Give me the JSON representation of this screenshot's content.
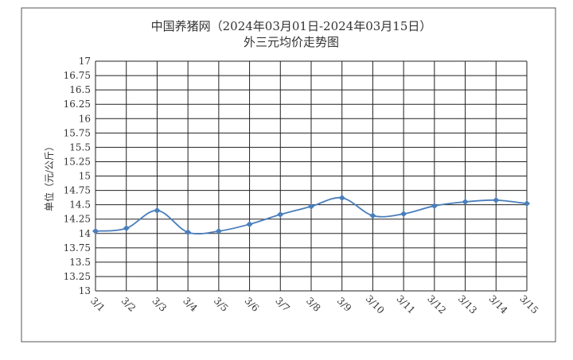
{
  "chart_data": {
    "type": "line",
    "title": "中国养猪网（2024年03月01日-2024年03月15日）",
    "subtitle": "外三元均价走势图",
    "y_label": "单位（元/公斤）",
    "categories": [
      "3/1",
      "3/2",
      "3/3",
      "3/4",
      "3/5",
      "3/6",
      "3/7",
      "3/8",
      "3/9",
      "3/10",
      "3/11",
      "3/12",
      "3/13",
      "3/14",
      "3/15"
    ],
    "series": [
      {
        "name": "外三元",
        "color": "#4a7ebb",
        "values": [
          14.04,
          14.09,
          14.4,
          14.02,
          14.04,
          14.16,
          14.33,
          14.47,
          14.62,
          14.31,
          14.34,
          14.48,
          14.55,
          14.58,
          14.52
        ]
      }
    ],
    "ylim": [
      13,
      17
    ],
    "yticks": [
      13,
      13.25,
      13.5,
      13.75,
      14,
      14.25,
      14.5,
      14.75,
      15,
      15.25,
      15.5,
      15.75,
      16,
      16.25,
      16.5,
      16.75,
      17
    ],
    "grid": true,
    "smooth": true
  }
}
